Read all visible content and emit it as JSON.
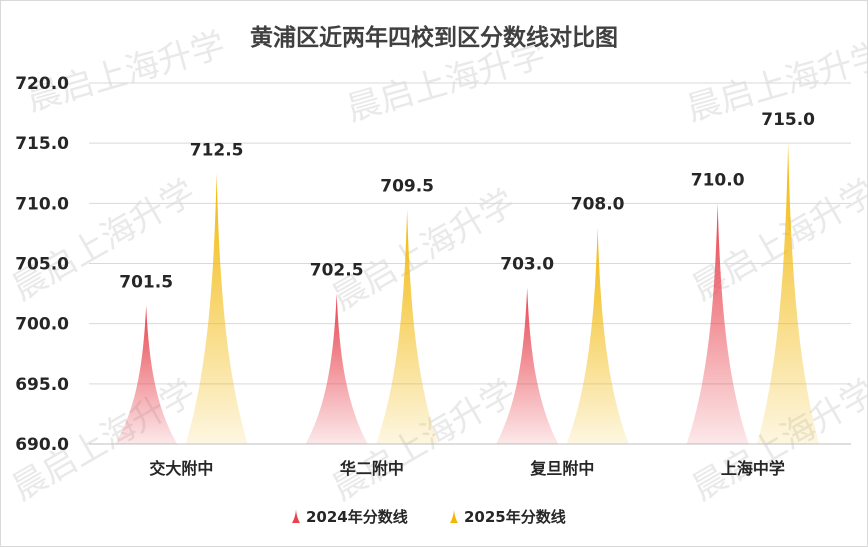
{
  "watermark": "晨启上海升学",
  "chart_data": {
    "type": "bar",
    "title": "黄浦区近两年四校到区分数线对比图",
    "categories": [
      "交大附中",
      "华二附中",
      "复旦附中",
      "上海中学"
    ],
    "series": [
      {
        "name": "2024年分数线",
        "values": [
          701.5,
          702.5,
          703.0,
          710.0
        ],
        "color": "#e8424d"
      },
      {
        "name": "2025年分数线",
        "values": [
          712.5,
          709.5,
          708.0,
          715.0
        ],
        "color": "#f2b705"
      }
    ],
    "ylim": [
      690,
      720
    ],
    "yticks": [
      "690.0",
      "695.0",
      "700.0",
      "705.0",
      "710.0",
      "715.0",
      "720.0"
    ],
    "value_labels": [
      [
        "701.5",
        "702.5",
        "703.0",
        "710.0"
      ],
      [
        "712.5",
        "709.5",
        "708.0",
        "715.0"
      ]
    ],
    "grid": true,
    "legend": "bottom",
    "xlabel": "",
    "ylabel": ""
  }
}
